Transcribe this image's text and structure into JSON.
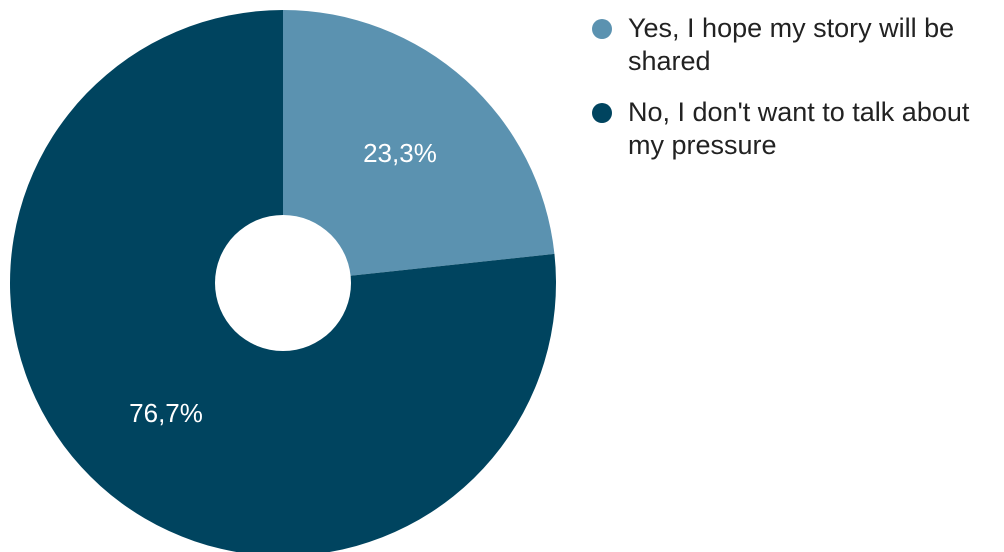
{
  "chart_data": {
    "type": "pie",
    "donut": true,
    "series": [
      {
        "name": "Yes, I hope my story will be shared",
        "value": 23.3,
        "label": "23,3%",
        "color": "#5b92b0"
      },
      {
        "name": "No, I don't want to talk about my pressure",
        "value": 76.7,
        "label": "76,7%",
        "color": "#00445f"
      }
    ],
    "legend_position": "right"
  }
}
